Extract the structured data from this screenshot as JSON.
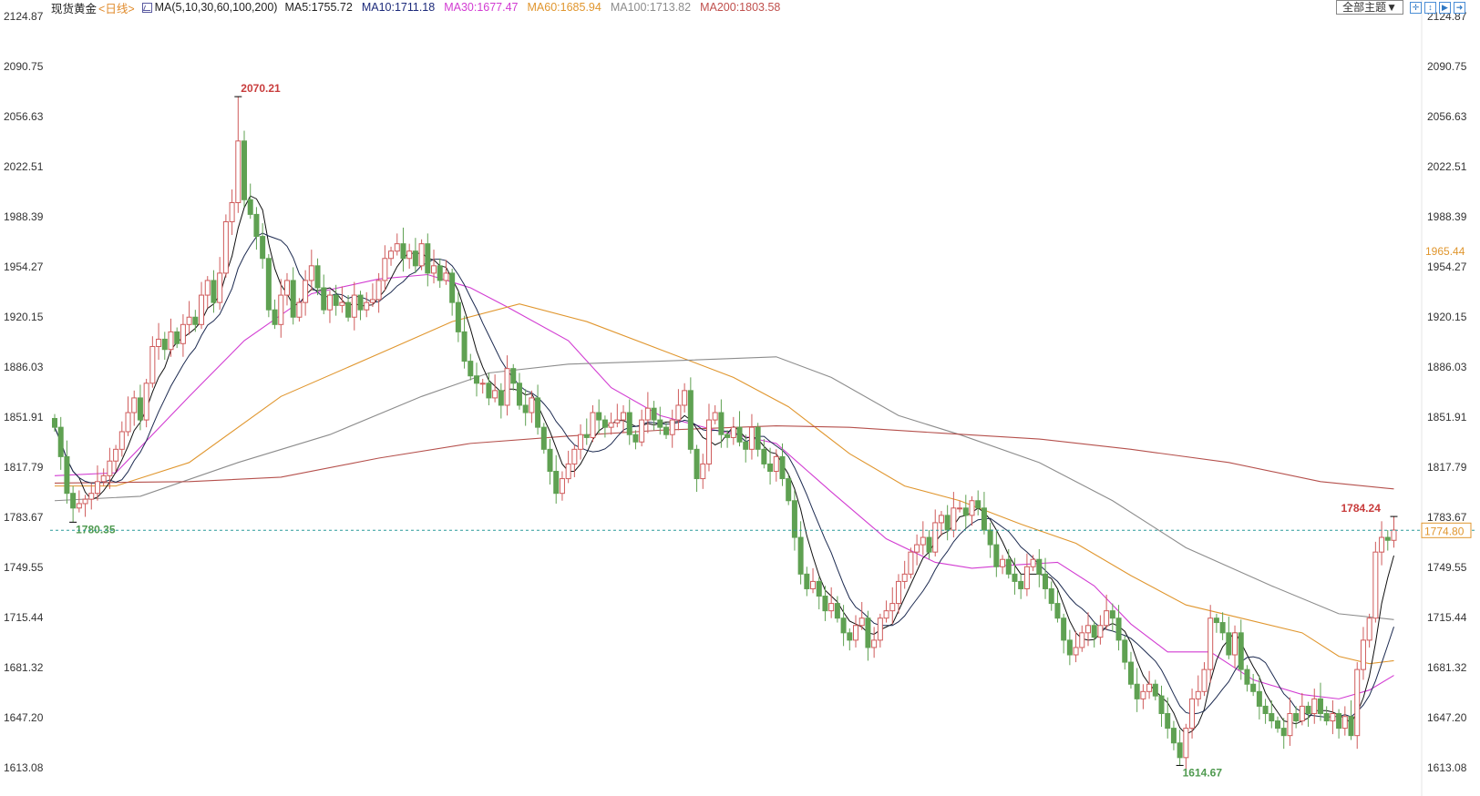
{
  "header": {
    "instrument": "现货黄金",
    "period": "<日线>",
    "ma_label": "MA(5,10,30,60,100,200)",
    "ma_values": [
      {
        "text": "MA5:1755.72",
        "color": "#222222"
      },
      {
        "text": "MA10:1711.18",
        "color": "#1c2a7a"
      },
      {
        "text": "MA30:1677.47",
        "color": "#d23cd2"
      },
      {
        "text": "MA60:1685.94",
        "color": "#e0962e"
      },
      {
        "text": "MA100:1713.82",
        "color": "#8c8c8c"
      },
      {
        "text": "MA200:1803.58",
        "color": "#c0504d"
      }
    ],
    "theme_button": "全部主题▼",
    "tool_icons": [
      "crosshair-icon",
      "zoom-range-icon",
      "play-forward-icon",
      "exit-icon"
    ]
  },
  "chart_data": {
    "type": "candlestick",
    "ylim": [
      1613.08,
      2124.87
    ],
    "y_ticks": [
      "2124.87",
      "2090.75",
      "2056.63",
      "2022.51",
      "1988.39",
      "1954.27",
      "1920.15",
      "1886.03",
      "1851.91",
      "1817.79",
      "1783.67",
      "1749.55",
      "1715.44",
      "1681.32",
      "1647.20",
      "1613.08"
    ],
    "colors": {
      "up": "#cf5b5b",
      "down": "#5fa152",
      "last_price_line": "#2a9a9a",
      "label_orange": "#e0962e"
    },
    "closes": [
      1845,
      1825,
      1800,
      1790,
      1793,
      1796,
      1800,
      1808,
      1812,
      1822,
      1830,
      1842,
      1855,
      1865,
      1850,
      1875,
      1900,
      1905,
      1898,
      1910,
      1902,
      1915,
      1920,
      1915,
      1935,
      1945,
      1930,
      1950,
      1985,
      1998,
      2040,
      2000,
      1990,
      1975,
      1960,
      1925,
      1915,
      1935,
      1945,
      1920,
      1930,
      1945,
      1955,
      1940,
      1925,
      1935,
      1928,
      1930,
      1920,
      1935,
      1925,
      1930,
      1932,
      1945,
      1960,
      1965,
      1970,
      1960,
      1965,
      1955,
      1970,
      1950,
      1955,
      1945,
      1950,
      1930,
      1910,
      1890,
      1880,
      1875,
      1875,
      1865,
      1870,
      1860,
      1885,
      1875,
      1860,
      1855,
      1865,
      1845,
      1830,
      1815,
      1800,
      1810,
      1820,
      1830,
      1840,
      1838,
      1855,
      1850,
      1845,
      1848,
      1850,
      1855,
      1840,
      1835,
      1850,
      1858,
      1850,
      1845,
      1840,
      1850,
      1860,
      1870,
      1830,
      1810,
      1820,
      1850,
      1855,
      1840,
      1838,
      1845,
      1835,
      1830,
      1845,
      1830,
      1820,
      1815,
      1825,
      1810,
      1795,
      1770,
      1745,
      1735,
      1740,
      1730,
      1720,
      1725,
      1715,
      1705,
      1700,
      1710,
      1715,
      1695,
      1700,
      1715,
      1720,
      1725,
      1740,
      1745,
      1760,
      1765,
      1770,
      1760,
      1780,
      1785,
      1775,
      1790,
      1790,
      1785,
      1795,
      1790,
      1775,
      1765,
      1750,
      1755,
      1745,
      1740,
      1735,
      1750,
      1755,
      1745,
      1735,
      1725,
      1715,
      1700,
      1690,
      1695,
      1705,
      1710,
      1702,
      1710,
      1720,
      1715,
      1700,
      1685,
      1670,
      1660,
      1665,
      1670,
      1662,
      1650,
      1640,
      1630,
      1620,
      1640,
      1660,
      1665,
      1680,
      1715,
      1712,
      1705,
      1690,
      1705,
      1680,
      1670,
      1665,
      1655,
      1650,
      1645,
      1640,
      1635,
      1650,
      1645,
      1655,
      1650,
      1660,
      1650,
      1645,
      1650,
      1640,
      1648,
      1635,
      1680,
      1700,
      1715,
      1760,
      1770,
      1768,
      1775
    ],
    "moving_averages": [
      {
        "name": "MA30",
        "color": "#d23cd2",
        "points": [
          [
            0,
            1812
          ],
          [
            10,
            1814
          ],
          [
            22,
            1866
          ],
          [
            31,
            1904
          ],
          [
            42,
            1936
          ],
          [
            53,
            1946
          ],
          [
            61,
            1949
          ],
          [
            68,
            1940
          ],
          [
            74,
            1927
          ],
          [
            84,
            1904
          ],
          [
            91,
            1872
          ],
          [
            99,
            1853
          ],
          [
            108,
            1843
          ],
          [
            118,
            1834
          ],
          [
            127,
            1801
          ],
          [
            136,
            1769
          ],
          [
            144,
            1753
          ],
          [
            150,
            1749
          ],
          [
            156,
            1751
          ],
          [
            164,
            1753
          ],
          [
            170,
            1737
          ],
          [
            176,
            1711
          ],
          [
            182,
            1692
          ],
          [
            189,
            1692
          ],
          [
            196,
            1673
          ],
          [
            204,
            1663
          ],
          [
            210,
            1660
          ],
          [
            215,
            1666
          ],
          [
            219,
            1676
          ]
        ]
      },
      {
        "name": "MA60",
        "color": "#e0962e",
        "points": [
          [
            0,
            1805
          ],
          [
            10,
            1805
          ],
          [
            22,
            1821
          ],
          [
            37,
            1866
          ],
          [
            53,
            1895
          ],
          [
            65,
            1917
          ],
          [
            76,
            1929
          ],
          [
            87,
            1917
          ],
          [
            99,
            1898
          ],
          [
            111,
            1879
          ],
          [
            120,
            1859
          ],
          [
            130,
            1827
          ],
          [
            139,
            1805
          ],
          [
            148,
            1795
          ],
          [
            158,
            1779
          ],
          [
            167,
            1766
          ],
          [
            176,
            1744
          ],
          [
            185,
            1724
          ],
          [
            194,
            1715
          ],
          [
            204,
            1705
          ],
          [
            210,
            1689
          ],
          [
            215,
            1684
          ],
          [
            219,
            1686
          ]
        ]
      },
      {
        "name": "MA100",
        "color": "#8c8c8c",
        "points": [
          [
            0,
            1795
          ],
          [
            14,
            1798
          ],
          [
            30,
            1821
          ],
          [
            45,
            1840
          ],
          [
            60,
            1866
          ],
          [
            71,
            1882
          ],
          [
            84,
            1888
          ],
          [
            99,
            1890
          ],
          [
            118,
            1893
          ],
          [
            127,
            1879
          ],
          [
            138,
            1853
          ],
          [
            148,
            1840
          ],
          [
            161,
            1821
          ],
          [
            173,
            1795
          ],
          [
            185,
            1763
          ],
          [
            199,
            1737
          ],
          [
            210,
            1718
          ],
          [
            219,
            1714
          ]
        ]
      },
      {
        "name": "MA200",
        "color": "#b5504c",
        "points": [
          [
            0,
            1807
          ],
          [
            22,
            1808
          ],
          [
            37,
            1811
          ],
          [
            53,
            1824
          ],
          [
            68,
            1834
          ],
          [
            84,
            1839
          ],
          [
            99,
            1843
          ],
          [
            118,
            1846
          ],
          [
            130,
            1845
          ],
          [
            145,
            1841
          ],
          [
            161,
            1837
          ],
          [
            176,
            1830
          ],
          [
            192,
            1821
          ],
          [
            207,
            1808
          ],
          [
            219,
            1803
          ]
        ]
      }
    ],
    "annotations": [
      {
        "index": 30,
        "value": 2070.21,
        "label": "2070.21",
        "kind": "high",
        "color": "#c83c3c"
      },
      {
        "index": 3,
        "value": 1780.35,
        "label": "1780.35",
        "kind": "low",
        "color": "#4f9a4f"
      },
      {
        "index": 184,
        "value": 1614.67,
        "label": "1614.67",
        "kind": "low",
        "color": "#4f9a4f"
      },
      {
        "index": 219,
        "value": 1784.24,
        "label": "1784.24",
        "kind": "high",
        "color": "#c83c3c"
      }
    ],
    "last_price": {
      "value": 1774.8,
      "label": "1774.80"
    },
    "cursor_price": {
      "value": 1965.44,
      "label": "1965.44"
    }
  }
}
